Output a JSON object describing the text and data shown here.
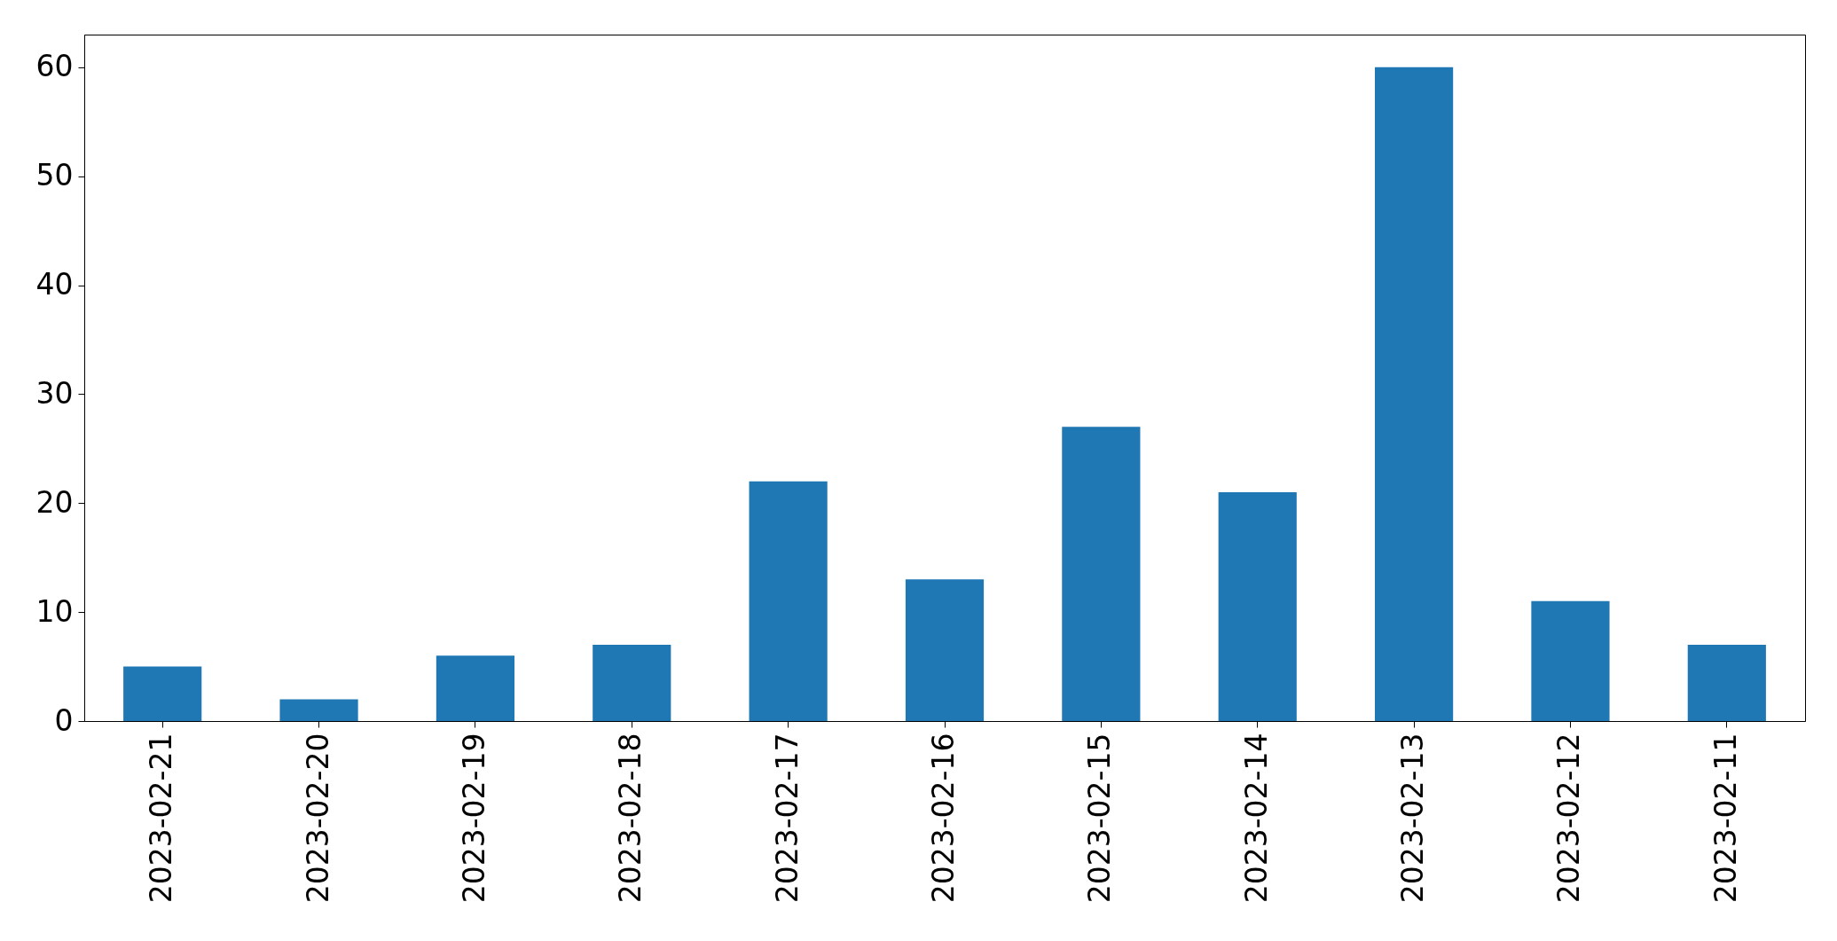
{
  "chart_data": {
    "type": "bar",
    "categories": [
      "2023-02-21",
      "2023-02-20",
      "2023-02-19",
      "2023-02-18",
      "2023-02-17",
      "2023-02-16",
      "2023-02-15",
      "2023-02-14",
      "2023-02-13",
      "2023-02-12",
      "2023-02-11"
    ],
    "values": [
      5,
      2,
      6,
      7,
      22,
      13,
      27,
      21,
      60,
      11,
      7
    ],
    "color": "#1f77b4",
    "ylim": [
      0,
      63
    ],
    "yticks": [
      0,
      10,
      20,
      30,
      40,
      50,
      60
    ]
  }
}
